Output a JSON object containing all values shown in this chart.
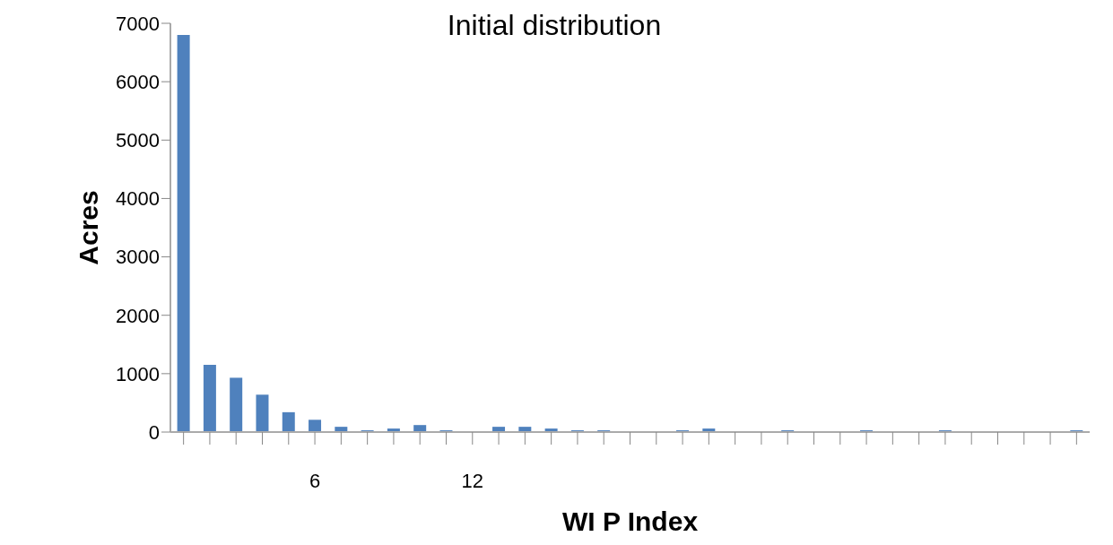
{
  "chart_data": {
    "type": "bar",
    "title": "Initial distribution",
    "xlabel": "WI P Index",
    "ylabel": "Acres",
    "categories": [
      null,
      null,
      null,
      null,
      null,
      "6",
      null,
      null,
      null,
      null,
      null,
      "12",
      null,
      null,
      null,
      null,
      null,
      null,
      null,
      null,
      null,
      null,
      null,
      null,
      null,
      null,
      null,
      null,
      null,
      null,
      null,
      null,
      null,
      null,
      null
    ],
    "values": [
      6800,
      1150,
      930,
      640,
      340,
      210,
      90,
      30,
      60,
      120,
      30,
      0,
      90,
      90,
      60,
      30,
      30,
      0,
      0,
      30,
      60,
      0,
      0,
      30,
      0,
      0,
      30,
      0,
      0,
      30,
      0,
      0,
      0,
      0,
      30
    ],
    "color": "#4f81bd",
    "ylim": [
      0,
      7000
    ],
    "yticks": [
      0,
      1000,
      2000,
      3000,
      4000,
      5000,
      6000,
      7000
    ],
    "grid": false,
    "legend": false
  }
}
